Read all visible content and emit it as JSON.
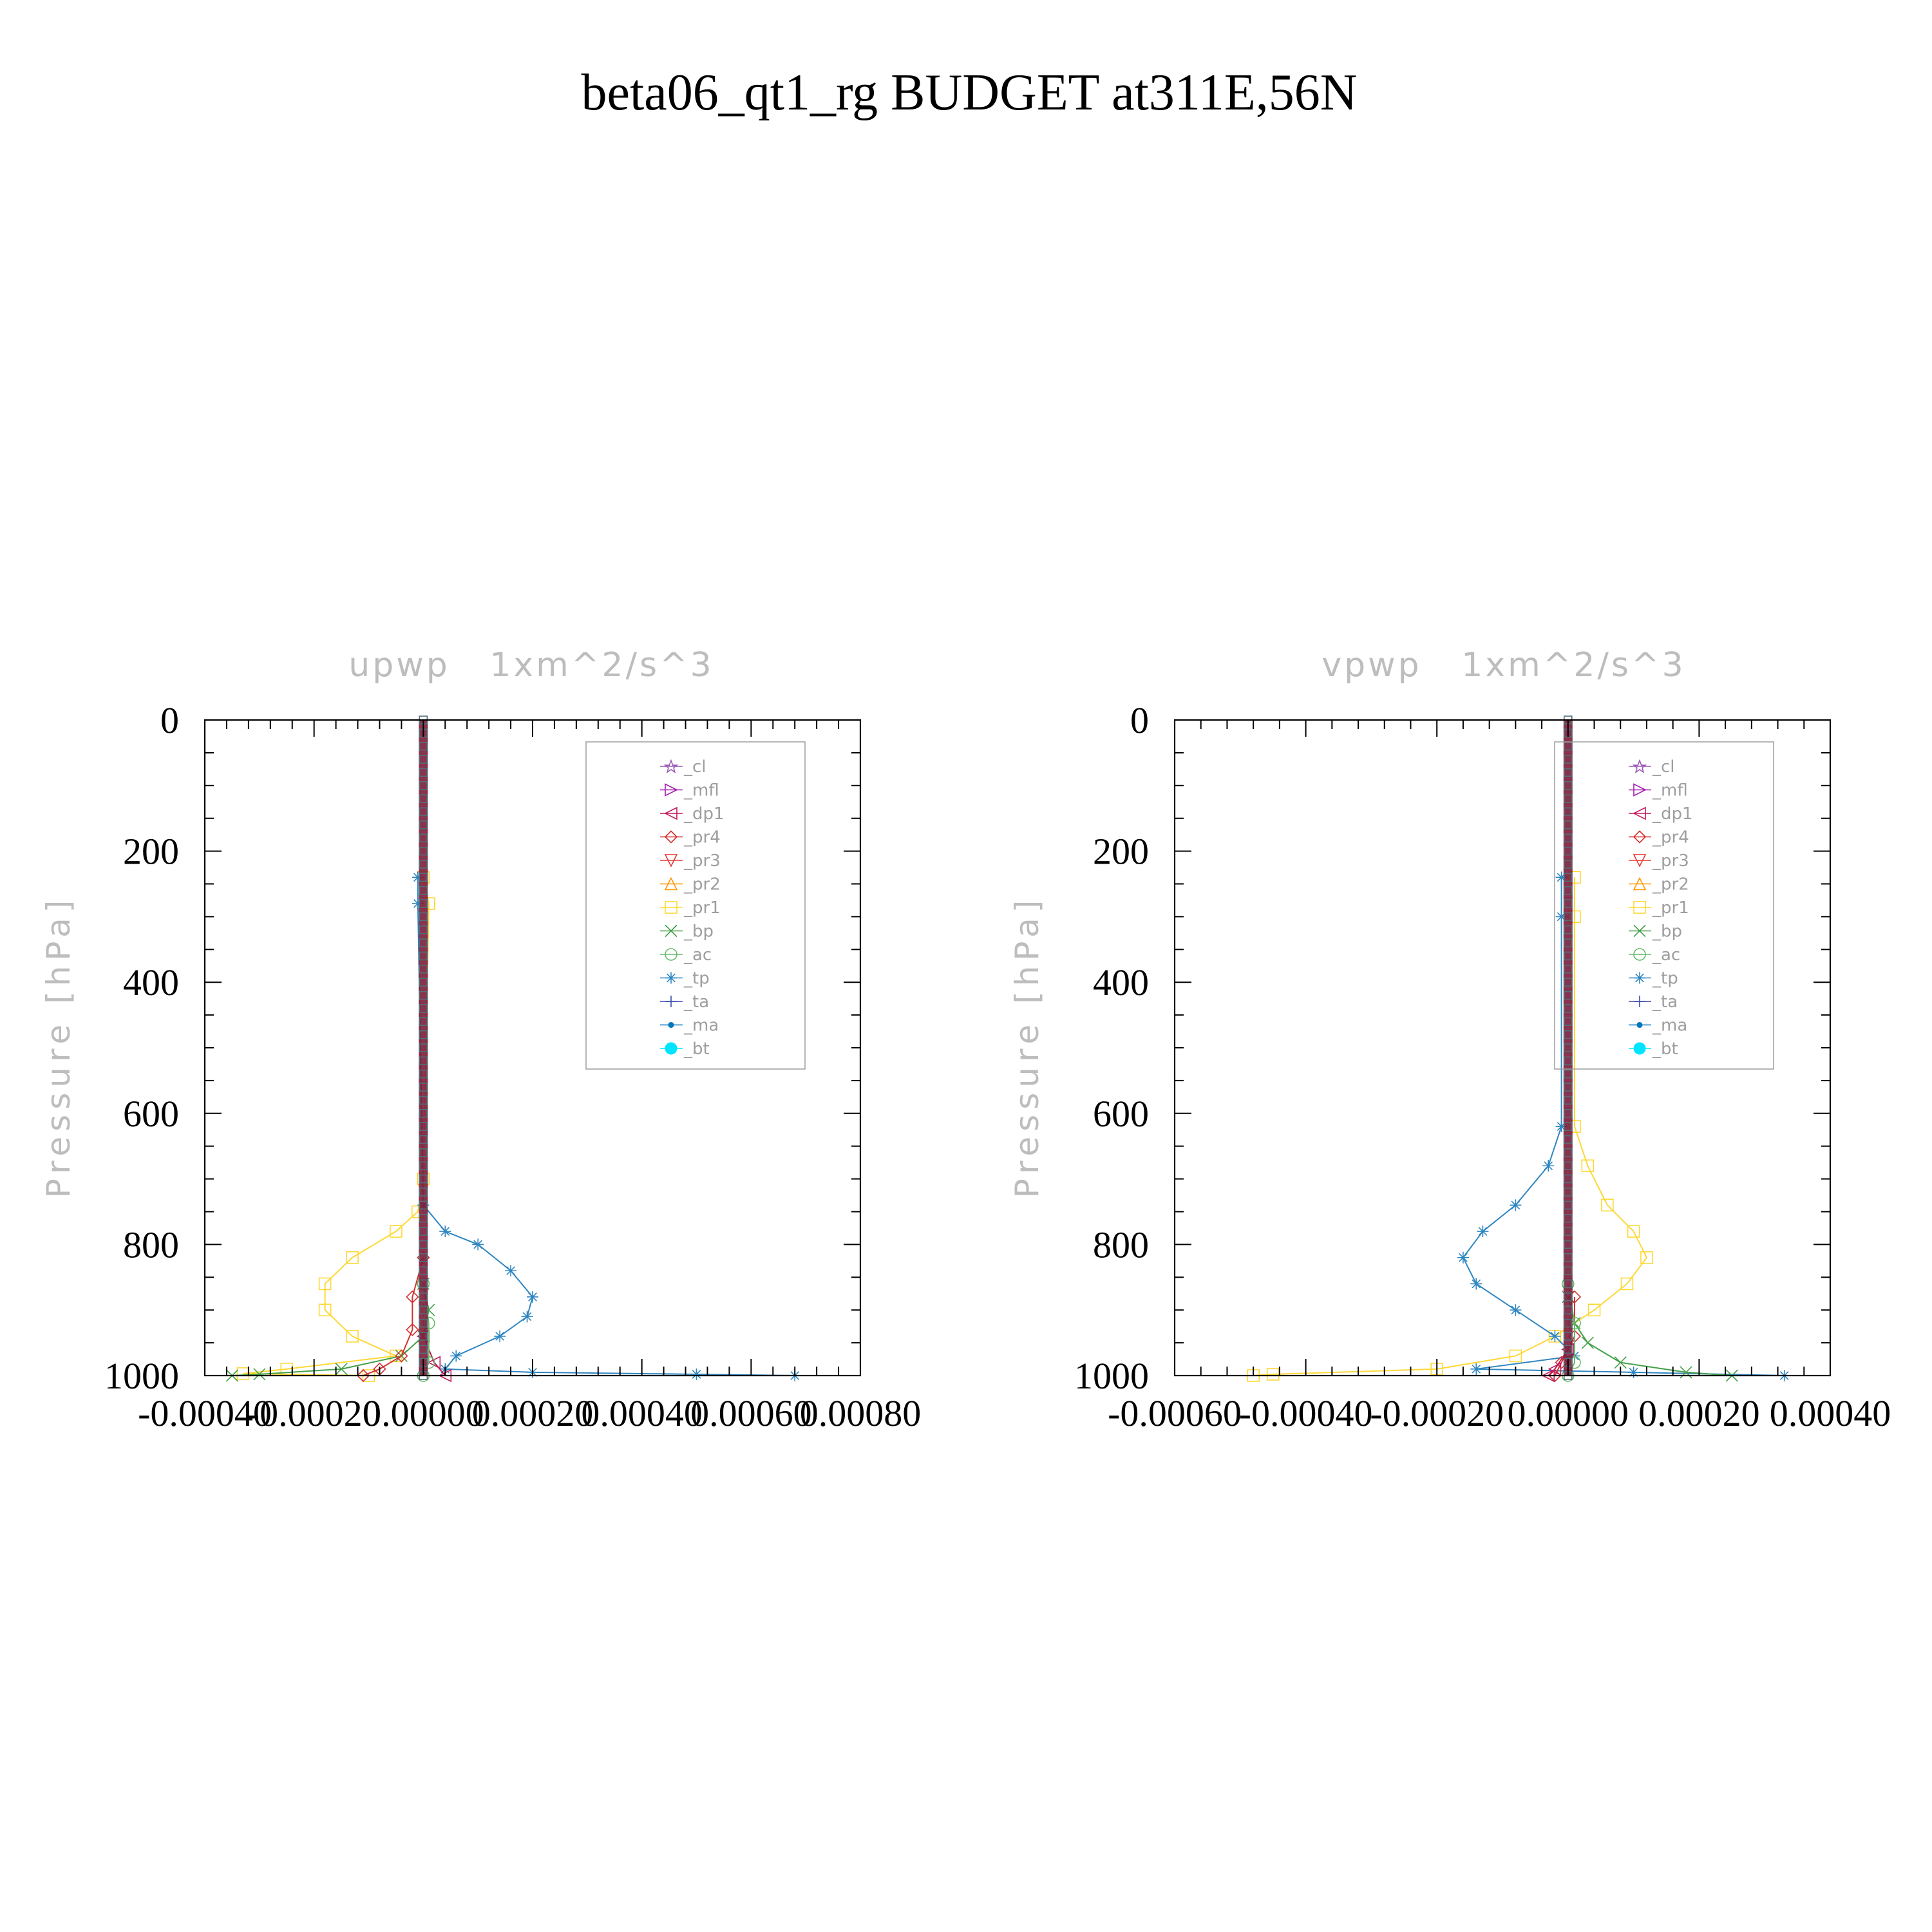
{
  "figure_title": "beta06_qt1_rg  BUDGET at311E,56N",
  "legend_entries": [
    {
      "label": "_cl",
      "color": "#9b59b6",
      "marker": "star"
    },
    {
      "label": "_mfl",
      "color": "#a21caf",
      "marker": "tri-right"
    },
    {
      "label": "_dp1",
      "color": "#c2185b",
      "marker": "tri-left"
    },
    {
      "label": "_pr4",
      "color": "#d32f2f",
      "marker": "diamond"
    },
    {
      "label": "_pr3",
      "color": "#e53935",
      "marker": "tri-down"
    },
    {
      "label": "_pr2",
      "color": "#ff9800",
      "marker": "tri-up"
    },
    {
      "label": "_pr1",
      "color": "#fdd835",
      "marker": "square"
    },
    {
      "label": "_bp",
      "color": "#43a047",
      "marker": "x"
    },
    {
      "label": "_ac",
      "color": "#66bb6a",
      "marker": "circle"
    },
    {
      "label": "_tp",
      "color": "#2e86c1",
      "marker": "asterisk"
    },
    {
      "label": "_ta",
      "color": "#3949ab",
      "marker": "plus"
    },
    {
      "label": "_ma",
      "color": "#0277bd",
      "marker": "dot"
    },
    {
      "label": "_bt",
      "color": "#00e5ff",
      "marker": "filled-circle"
    }
  ],
  "chart_data": [
    {
      "type": "line",
      "title": "upwp   1xm^2/s^3",
      "ylabel": "Pressure [hPa]",
      "xlabel": "",
      "xlim": [
        -0.0004,
        0.0008
      ],
      "ylim": [
        1000,
        0
      ],
      "yticks": [
        0,
        200,
        400,
        600,
        800,
        1000
      ],
      "ytick_labels": [
        "0",
        "200",
        "400",
        "600",
        "800",
        "1000"
      ],
      "xticks": [
        -0.0004,
        -0.0002,
        0.0,
        0.0002,
        0.0004,
        0.0006,
        0.0008
      ],
      "xtick_labels": [
        "-0.00040",
        "-0.00020",
        "0.00000",
        "0.00020",
        "0.00040",
        "0.00060",
        "0.00080"
      ],
      "legend_position": "top-right",
      "series": [
        {
          "name": "_pr1",
          "y": [
            240,
            280,
            700,
            750,
            780,
            820,
            860,
            900,
            940,
            970,
            990,
            997,
            1000
          ],
          "x": [
            0.0,
            1e-05,
            0.0,
            -1e-05,
            -5e-05,
            -0.00013,
            -0.00018,
            -0.00018,
            -0.00013,
            -5e-05,
            -0.00025,
            -0.00033,
            -0.0001
          ]
        },
        {
          "name": "_tp",
          "y": [
            240,
            280,
            740,
            780,
            800,
            840,
            880,
            910,
            940,
            970,
            990,
            995,
            998,
            1000
          ],
          "x": [
            -1e-05,
            -1e-05,
            0.0,
            4e-05,
            0.0001,
            0.00016,
            0.0002,
            0.00019,
            0.00014,
            6e-05,
            4e-05,
            0.0002,
            0.0005,
            0.00068
          ]
        },
        {
          "name": "_bp",
          "y": [
            860,
            900,
            940,
            970,
            990,
            998,
            1000
          ],
          "x": [
            0.0,
            1e-05,
            0.0,
            -4e-05,
            -0.00015,
            -0.0003,
            -0.00035
          ]
        },
        {
          "name": "_pr4",
          "y": [
            820,
            880,
            930,
            970,
            990,
            1000
          ],
          "x": [
            0.0,
            -2e-05,
            -2e-05,
            -4e-05,
            -8e-05,
            -0.00011
          ]
        },
        {
          "name": "_dp1",
          "y": [
            940,
            980,
            1000
          ],
          "x": [
            0.0,
            2e-05,
            4e-05
          ]
        },
        {
          "name": "_ac",
          "y": [
            860,
            920,
            980,
            1000
          ],
          "x": [
            0.0,
            1e-05,
            1e-05,
            0.0
          ]
        },
        {
          "name": "_bt",
          "y": [
            0,
            1000
          ],
          "x": [
            0.0,
            0.0
          ]
        }
      ]
    },
    {
      "type": "line",
      "title": "vpwp   1xm^2/s^3",
      "ylabel": "Pressure [hPa]",
      "xlabel": "",
      "xlim": [
        -0.0006,
        0.0004
      ],
      "ylim": [
        1000,
        0
      ],
      "yticks": [
        0,
        200,
        400,
        600,
        800,
        1000
      ],
      "ytick_labels": [
        "0",
        "200",
        "400",
        "600",
        "800",
        "1000"
      ],
      "xticks": [
        -0.0006,
        -0.0004,
        -0.0002,
        0.0,
        0.0002,
        0.0004
      ],
      "xtick_labels": [
        "-0.00060",
        "-0.00040",
        "-0.00020",
        "0.00000",
        "0.00020",
        "0.00040"
      ],
      "legend_position": "top-right",
      "series": [
        {
          "name": "_pr1",
          "y": [
            240,
            300,
            620,
            680,
            740,
            780,
            820,
            860,
            900,
            940,
            970,
            990,
            998,
            1000
          ],
          "x": [
            1e-05,
            1e-05,
            1e-05,
            3e-05,
            6e-05,
            0.0001,
            0.00012,
            9e-05,
            4e-05,
            -2e-05,
            -8e-05,
            -0.0002,
            -0.00045,
            -0.00048
          ]
        },
        {
          "name": "_tp",
          "y": [
            240,
            300,
            620,
            680,
            740,
            780,
            820,
            860,
            900,
            940,
            970,
            990,
            995,
            1000
          ],
          "x": [
            -1e-05,
            -1e-05,
            -1e-05,
            -3e-05,
            -8e-05,
            -0.00013,
            -0.00016,
            -0.00014,
            -8e-05,
            -2e-05,
            1e-05,
            -0.00014,
            0.0001,
            0.00033
          ]
        },
        {
          "name": "_bp",
          "y": [
            880,
            920,
            950,
            980,
            995,
            1000
          ],
          "x": [
            0.0,
            1e-05,
            3e-05,
            8e-05,
            0.00018,
            0.00025
          ]
        },
        {
          "name": "_pr4",
          "y": [
            880,
            940,
            980,
            1000
          ],
          "x": [
            1e-05,
            1e-05,
            -1e-05,
            -2e-05
          ]
        },
        {
          "name": "_dp1",
          "y": [
            960,
            990,
            1000
          ],
          "x": [
            0.0,
            -2e-05,
            -3e-05
          ]
        },
        {
          "name": "_ac",
          "y": [
            860,
            920,
            980,
            1000
          ],
          "x": [
            0.0,
            1e-05,
            1e-05,
            0.0
          ]
        },
        {
          "name": "_bt",
          "y": [
            0,
            1000
          ],
          "x": [
            0.0,
            0.0
          ]
        }
      ]
    }
  ]
}
